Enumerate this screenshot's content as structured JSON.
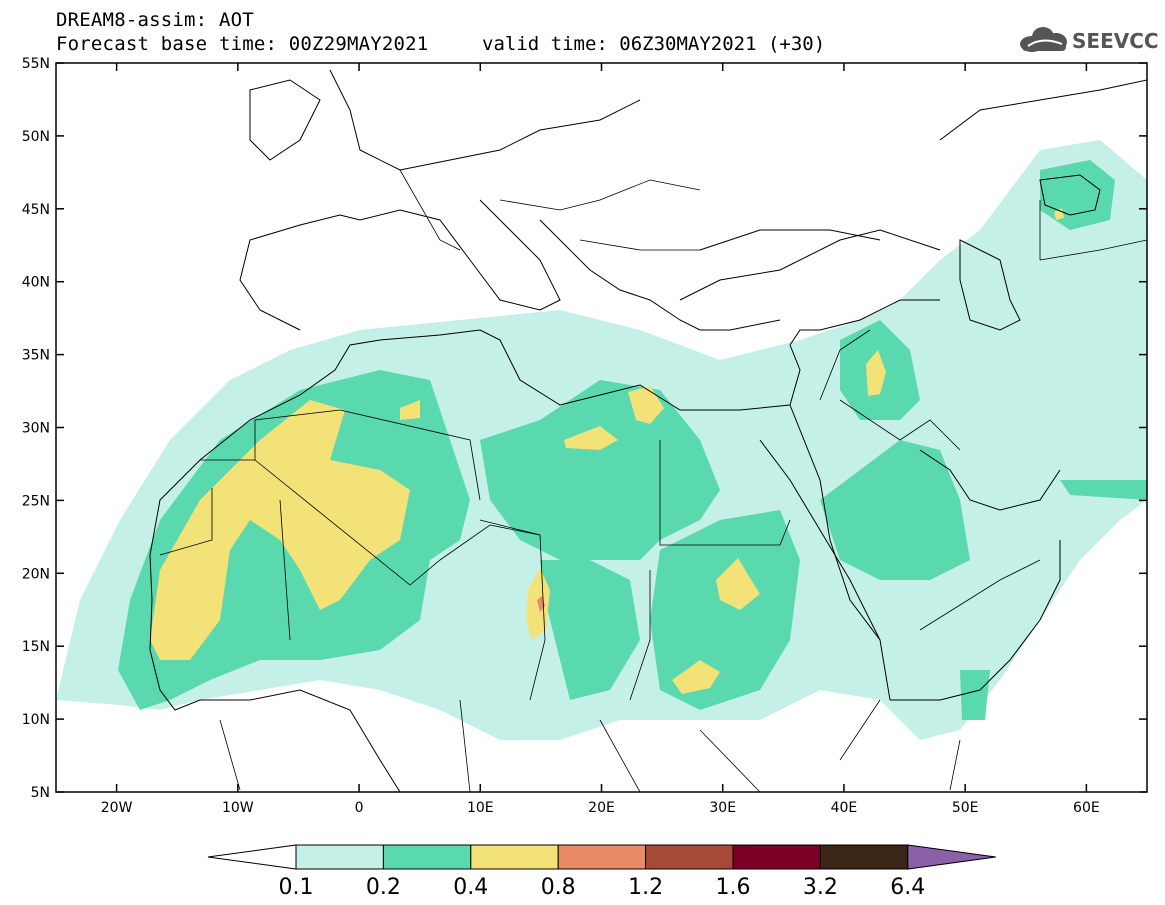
{
  "title": {
    "line1": "DREAM8-assim: AOT",
    "line2": "Forecast base time: 00Z29MAY2021",
    "valid": "valid time: 06Z30MAY2021 (+30)"
  },
  "logo": {
    "text": "SEEVCCC",
    "icon": "cloud-icon"
  },
  "map": {
    "lat_labels": [
      "55N",
      "50N",
      "45N",
      "40N",
      "35N",
      "30N",
      "25N",
      "20N",
      "15N",
      "10N",
      "5N"
    ],
    "lon_labels": [
      "20W",
      "10W",
      "0",
      "10E",
      "20E",
      "30E",
      "40E",
      "50E",
      "60E"
    ],
    "extent": {
      "lon": [
        -25,
        65
      ],
      "lat": [
        5,
        55
      ]
    }
  },
  "colorbar": {
    "labels": [
      "0.1",
      "0.2",
      "0.4",
      "0.8",
      "1.2",
      "1.6",
      "3.2",
      "6.4"
    ],
    "colors": [
      "#c4f0e8",
      "#5ad9ae",
      "#f2e277",
      "#e88c66",
      "#a84a38",
      "#7a0026",
      "#3a2516",
      "#8a60a8"
    ],
    "under_color": "#ffffff"
  }
}
